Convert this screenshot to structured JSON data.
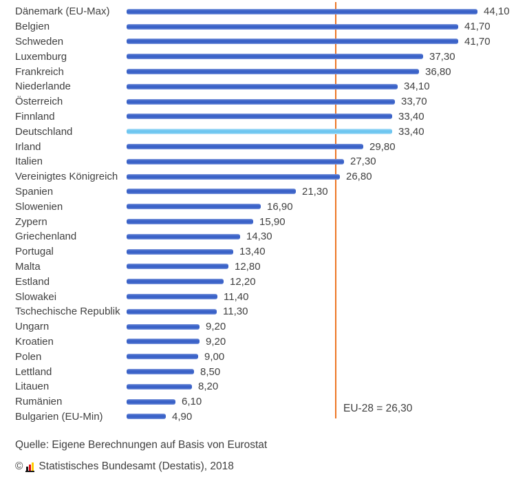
{
  "chart_data": {
    "type": "bar",
    "orientation": "horizontal",
    "categories": [
      "Dänemark (EU-Max)",
      "Belgien",
      "Schweden",
      "Luxemburg",
      "Frankreich",
      "Niederlande",
      "Österreich",
      "Finnland",
      "Deutschland",
      "Irland",
      "Italien",
      "Vereinigtes Königreich",
      "Spanien",
      "Slowenien",
      "Zypern",
      "Griechenland",
      "Portugal",
      "Malta",
      "Estland",
      "Slowakei",
      "Tschechische Republik",
      "Ungarn",
      "Kroatien",
      "Polen",
      "Lettland",
      "Litauen",
      "Rumänien",
      "Bulgarien (EU-Min)"
    ],
    "values": [
      44.1,
      41.7,
      41.7,
      37.3,
      36.8,
      34.1,
      33.7,
      33.4,
      33.4,
      29.8,
      27.3,
      26.8,
      21.3,
      16.9,
      15.9,
      14.3,
      13.4,
      12.8,
      12.2,
      11.4,
      11.3,
      9.2,
      9.2,
      9.0,
      8.5,
      8.2,
      6.1,
      4.9
    ],
    "value_labels": [
      "44,10",
      "41,70",
      "41,70",
      "37,30",
      "36,80",
      "34,10",
      "33,70",
      "33,40",
      "33,40",
      "29,80",
      "27,30",
      "26,80",
      "21,30",
      "16,90",
      "15,90",
      "14,30",
      "13,40",
      "12,80",
      "12,20",
      "11,40",
      "11,30",
      "9,20",
      "9,20",
      "9,00",
      "8,50",
      "8,20",
      "6,10",
      "4,90"
    ],
    "highlight_category": "Deutschland",
    "highlight_index": 8,
    "reference_line": {
      "label": "EU-28 = 26,30",
      "value": 26.3
    },
    "xlim": [
      0,
      48
    ],
    "grid": false,
    "legend": false,
    "colors": {
      "bar": "#3a62c8",
      "bar_highlight": "#6ec6f0",
      "reference_line": "#ec7524",
      "text": "#3f3f3f"
    }
  },
  "footer": {
    "source": "Quelle: Eigene Berechnungen auf Basis von Eurostat",
    "copyright_symbol": "©",
    "copyright_text": "Statistisches Bundesamt (Destatis), 2018",
    "logo_name": "destatis-bars-icon"
  }
}
